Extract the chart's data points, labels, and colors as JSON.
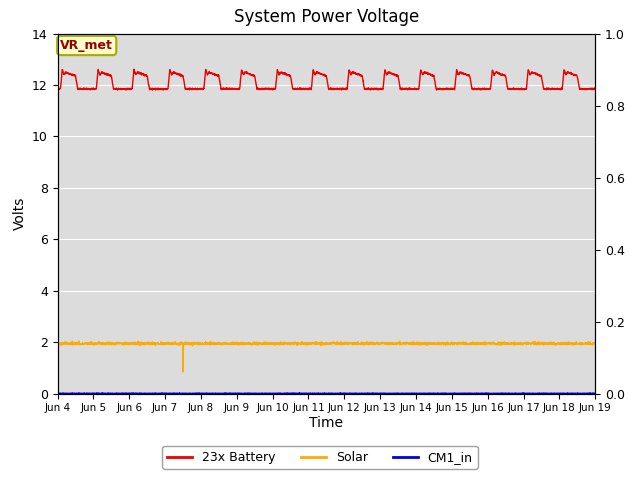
{
  "title": "System Power Voltage",
  "xlabel": "Time",
  "ylabel": "Volts",
  "background_color": "#dcdcdc",
  "fig_bg_color": "#ffffff",
  "xlim_days": [
    0,
    15
  ],
  "ylim_left": [
    0,
    14
  ],
  "ylim_right": [
    0.0,
    1.0
  ],
  "xtick_labels": [
    "Jun 4",
    "Jun 5",
    "Jun 6",
    "Jun 7",
    "Jun 8",
    "Jun 9",
    "Jun 10",
    "Jun 11",
    "Jun 12",
    "Jun 13",
    "Jun 14",
    "Jun 15",
    "Jun 16",
    "Jun 17",
    "Jun 18",
    "Jun 19"
  ],
  "ytick_left": [
    0,
    2,
    4,
    6,
    8,
    10,
    12,
    14
  ],
  "ytick_right": [
    0.0,
    0.2,
    0.4,
    0.6,
    0.8,
    1.0
  ],
  "grid_color": "#ffffff",
  "battery_color": "#ee0000",
  "solar_color": "#ffaa00",
  "cm1_color": "#0000dd",
  "annotation_text": "VR_met",
  "annotation_bg": "#ffffcc",
  "annotation_border": "#aaaa00",
  "legend_labels": [
    "23x Battery",
    "Solar",
    "CM1_in"
  ]
}
